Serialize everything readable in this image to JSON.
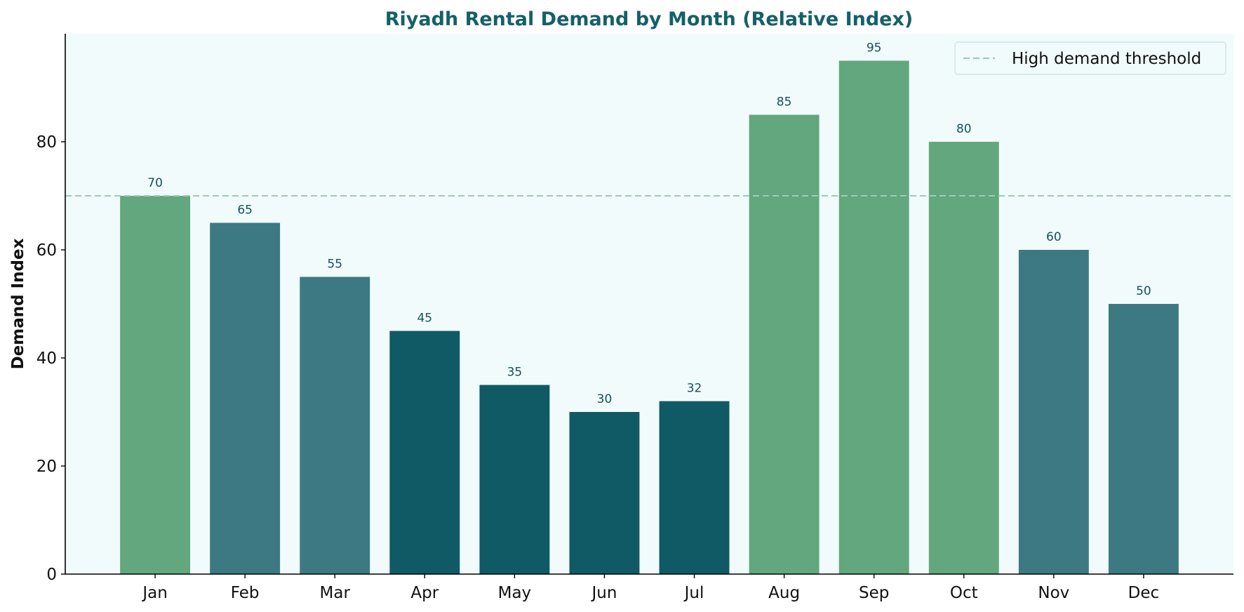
{
  "chart_data": {
    "type": "bar",
    "title": "Riyadh Rental Demand by Month (Relative Index)",
    "xlabel": "",
    "ylabel": "Demand Index",
    "categories": [
      "Jan",
      "Feb",
      "Mar",
      "Apr",
      "May",
      "Jun",
      "Jul",
      "Aug",
      "Sep",
      "Oct",
      "Nov",
      "Dec"
    ],
    "values": [
      70,
      65,
      55,
      45,
      35,
      30,
      32,
      85,
      95,
      80,
      60,
      50
    ],
    "ylim": [
      0,
      100
    ],
    "yticks": [
      0,
      20,
      40,
      60,
      80
    ],
    "threshold": {
      "label": "High demand threshold",
      "value": 70,
      "color": "#9fcab6"
    },
    "legend_position": "top-right",
    "grid": false,
    "colors": {
      "high": "#62a77e",
      "medium": "#3d7982",
      "low": "#0f5a65",
      "title": "#15606a",
      "value_label": "#15505a",
      "background": "#f1fbfb"
    },
    "bar_tiers": [
      "high",
      "medium",
      "medium",
      "low",
      "low",
      "low",
      "low",
      "high",
      "high",
      "high",
      "medium",
      "medium"
    ]
  }
}
